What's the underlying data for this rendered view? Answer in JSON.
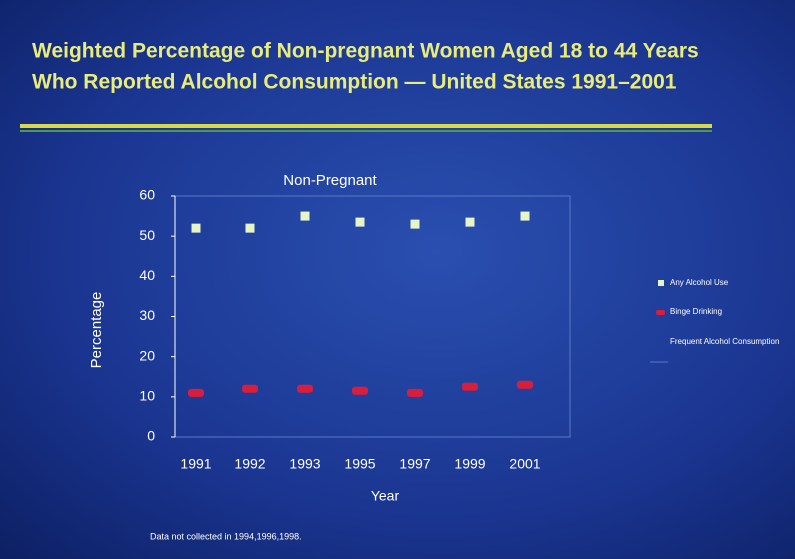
{
  "chart_data": {
    "type": "scatter",
    "title": "Weighted Percentage of Non-pregnant Women Aged 18 to 44 Years",
    "subtitle": "Who Reported Alcohol Consumption — United States 1991–2001",
    "chart_title": "Non-Pregnant",
    "x_label": "Year",
    "y_label": "Percentage",
    "note": "Data not collected in 1994,1996,1998.",
    "categories": [
      "1991",
      "1992",
      "1993",
      "1995",
      "1997",
      "1999",
      "2001"
    ],
    "series": [
      {
        "name": "Any Alcohol Use",
        "color": "#e6f5c8",
        "values": [
          52,
          52,
          55,
          53.5,
          53,
          53.5,
          55
        ]
      },
      {
        "name": "Binge Drinking",
        "color": "#d81e3c",
        "values": [
          11,
          12,
          12,
          11.5,
          11,
          12.5,
          13
        ]
      },
      {
        "name": "Frequent Alcohol Consumption",
        "color": "#3a5fb8",
        "values": [
          null,
          null,
          null,
          null,
          null,
          null,
          null
        ]
      }
    ],
    "ylim": [
      0,
      60
    ],
    "yticks": [
      0,
      10,
      20,
      30,
      40,
      50,
      60
    ],
    "grid": false,
    "legend": "right"
  }
}
